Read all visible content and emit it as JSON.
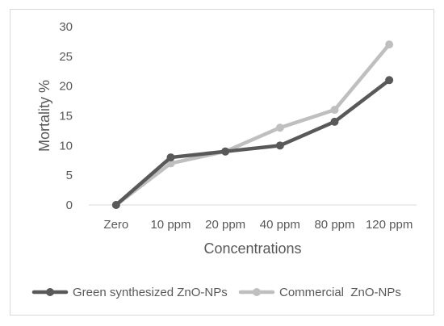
{
  "chart_data": {
    "type": "line",
    "title": "",
    "xlabel": "Concentrations",
    "ylabel": "Mortality %",
    "categories": [
      "Zero",
      "10 ppm",
      "20 ppm",
      "40 ppm",
      "80 ppm",
      "120 ppm"
    ],
    "ylim": [
      0,
      30
    ],
    "yticks": [
      "0",
      "5",
      "10",
      "15",
      "20",
      "25",
      "30"
    ],
    "grid": false,
    "legend_position": "bottom",
    "series": [
      {
        "name": "Green synthesized ZnO-NPs",
        "values": [
          0,
          8,
          9,
          10,
          14,
          21
        ],
        "color": "#595959",
        "marker": "circle"
      },
      {
        "name": "Commercial  ZnO-NPs",
        "values": [
          0,
          7,
          9,
          13,
          16,
          27
        ],
        "color": "#bfbfbf",
        "marker": "circle"
      }
    ]
  }
}
